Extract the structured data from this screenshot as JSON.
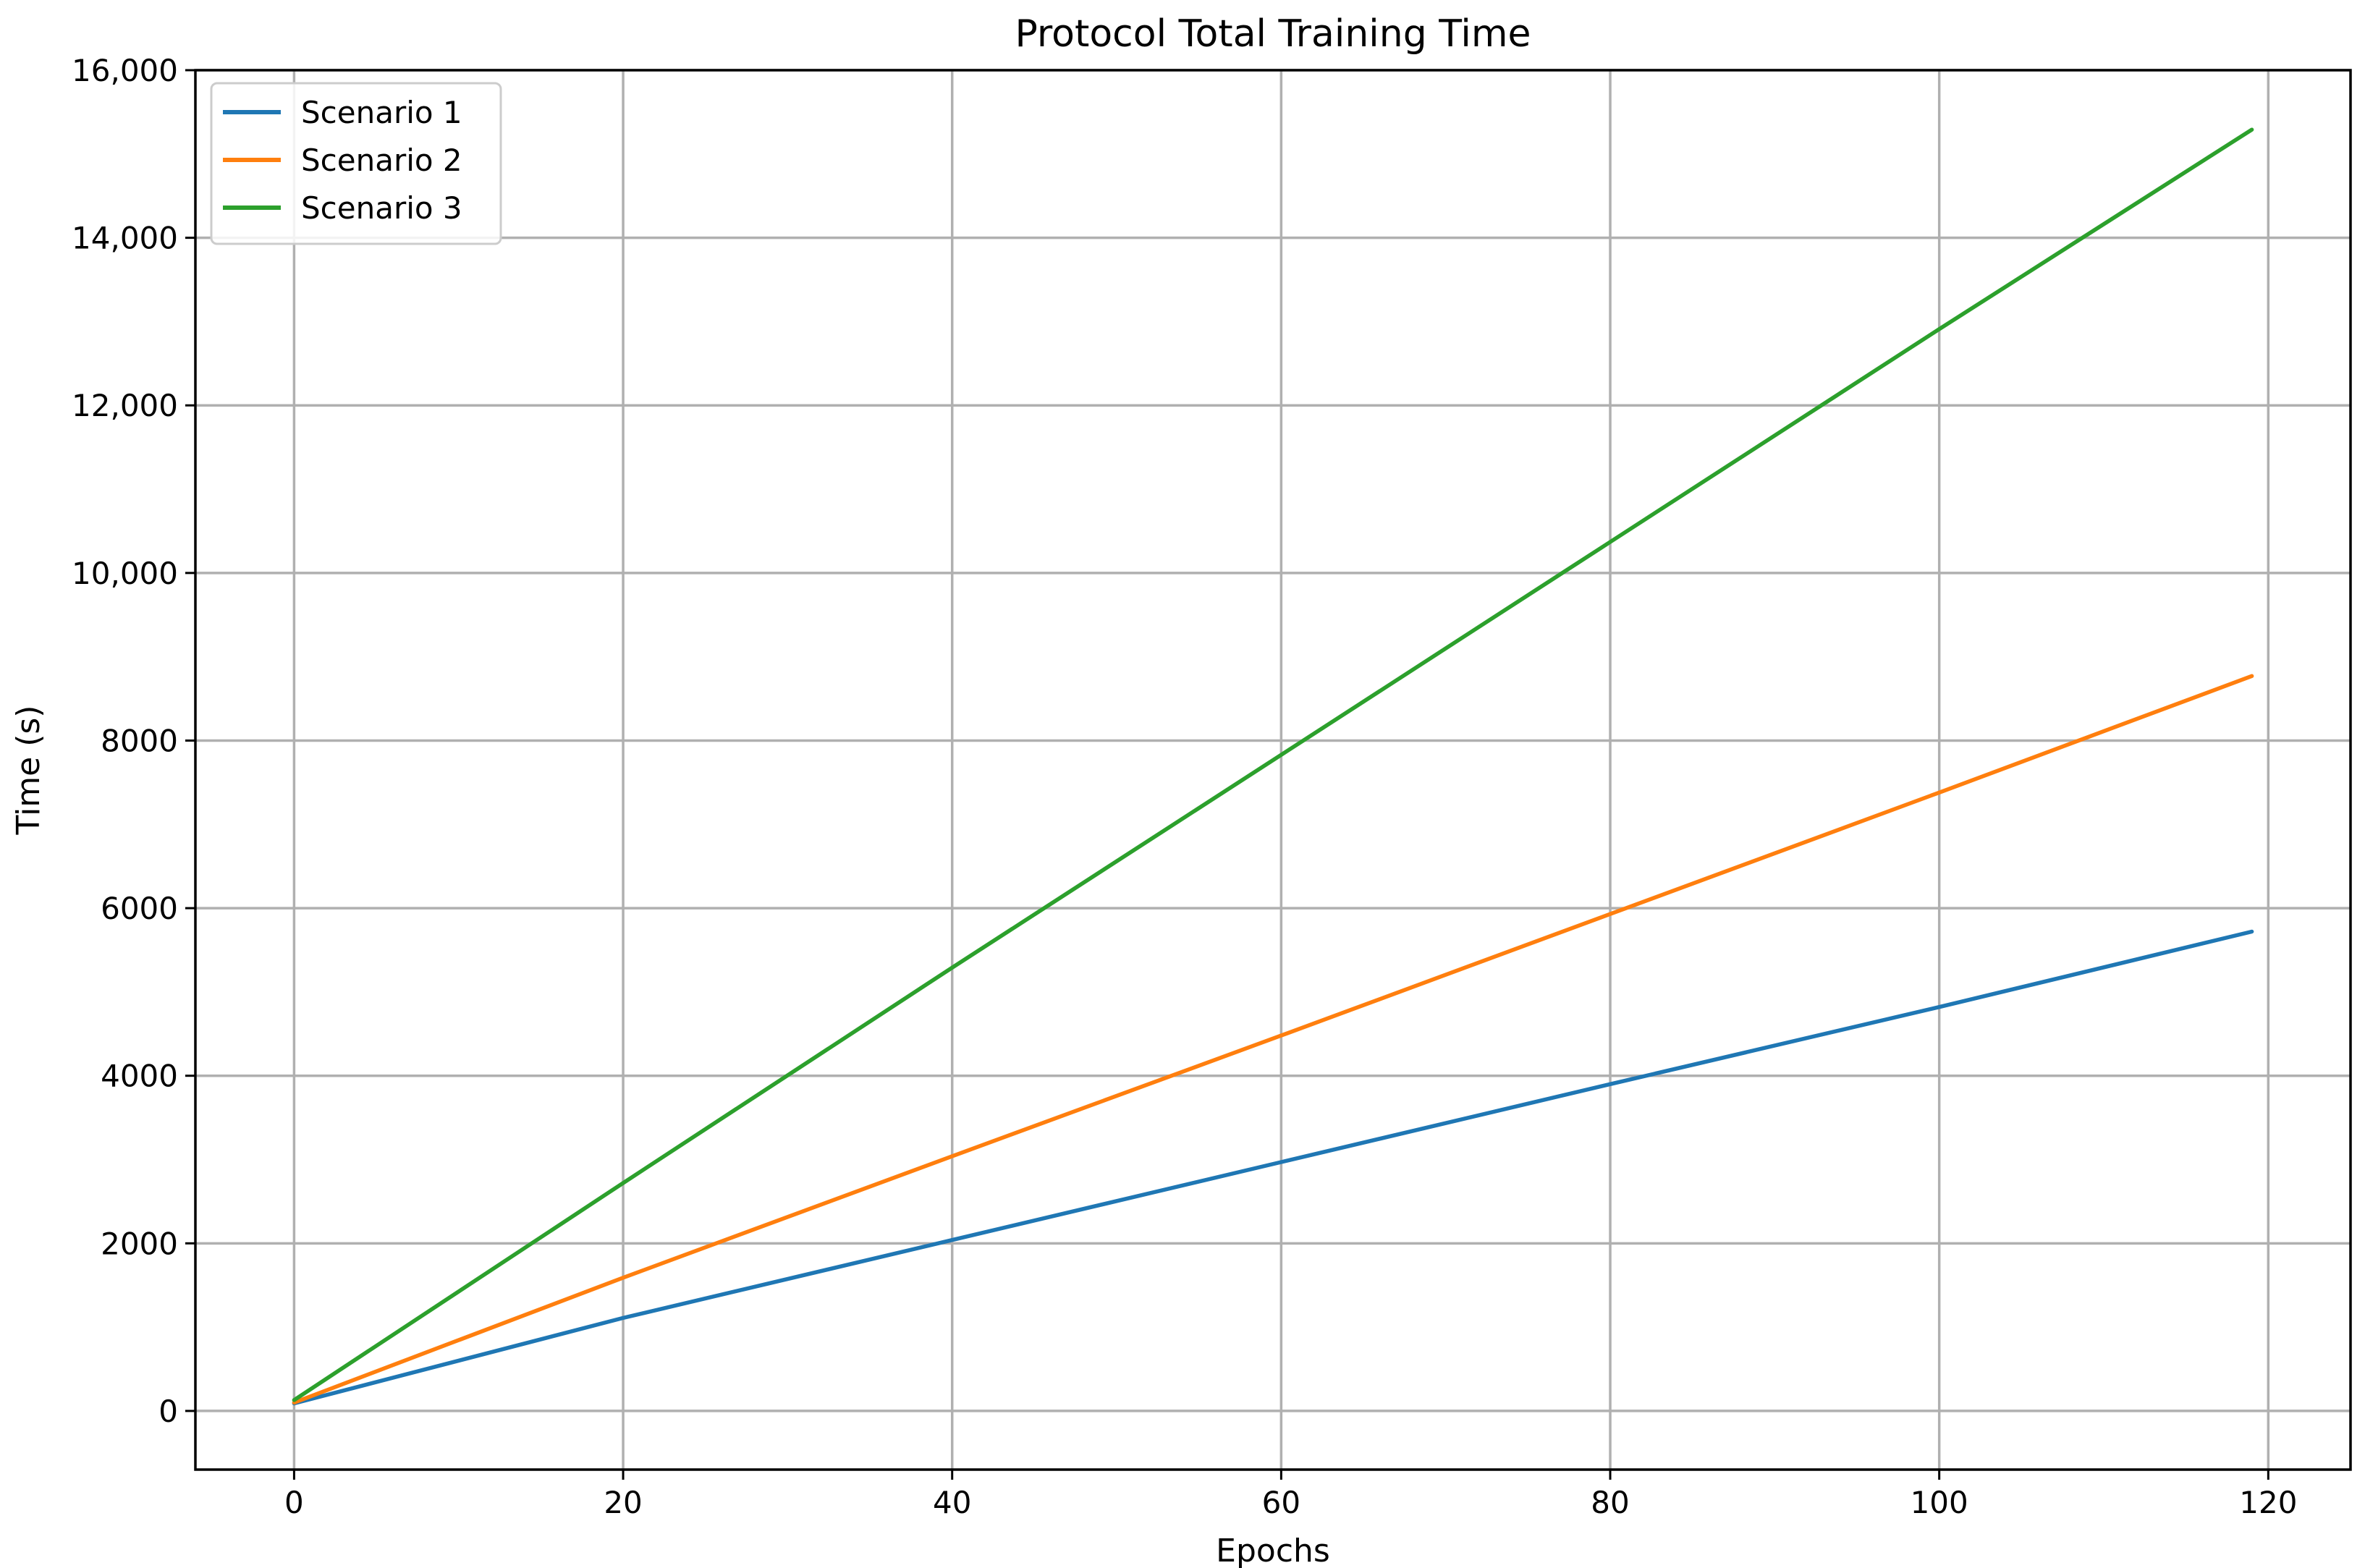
{
  "chart_data": {
    "type": "line",
    "title": "Protocol Total Training Time",
    "xlabel": "Epochs",
    "ylabel": "Time (s)",
    "xlim": [
      -6,
      125
    ],
    "ylim": [
      -700,
      16000
    ],
    "xticks": [
      0,
      20,
      40,
      60,
      80,
      100,
      120
    ],
    "xtick_labels": [
      "0",
      "20",
      "40",
      "60",
      "80",
      "100",
      "120"
    ],
    "yticks": [
      0,
      2000,
      4000,
      6000,
      8000,
      10000,
      12000,
      14000,
      16000
    ],
    "ytick_labels": [
      "0",
      "2000",
      "4000",
      "6000",
      "8000",
      "10,000",
      "12,000",
      "14,000",
      "16,000"
    ],
    "grid": true,
    "legend_position": "top-left",
    "series": [
      {
        "name": "Scenario 1",
        "color": "#1f77b4",
        "x": [
          0,
          20,
          40,
          60,
          80,
          100,
          119
        ],
        "y": [
          90,
          1110,
          2040,
          2970,
          3900,
          4820,
          5720
        ]
      },
      {
        "name": "Scenario 2",
        "color": "#ff7f0e",
        "x": [
          0,
          20,
          40,
          60,
          80,
          100,
          119
        ],
        "y": [
          100,
          1590,
          3040,
          4480,
          5930,
          7380,
          8770
        ]
      },
      {
        "name": "Scenario 3",
        "color": "#2ca02c",
        "x": [
          0,
          20,
          40,
          60,
          80,
          100,
          119
        ],
        "y": [
          130,
          2720,
          5290,
          7830,
          10370,
          12910,
          15290
        ]
      }
    ]
  }
}
